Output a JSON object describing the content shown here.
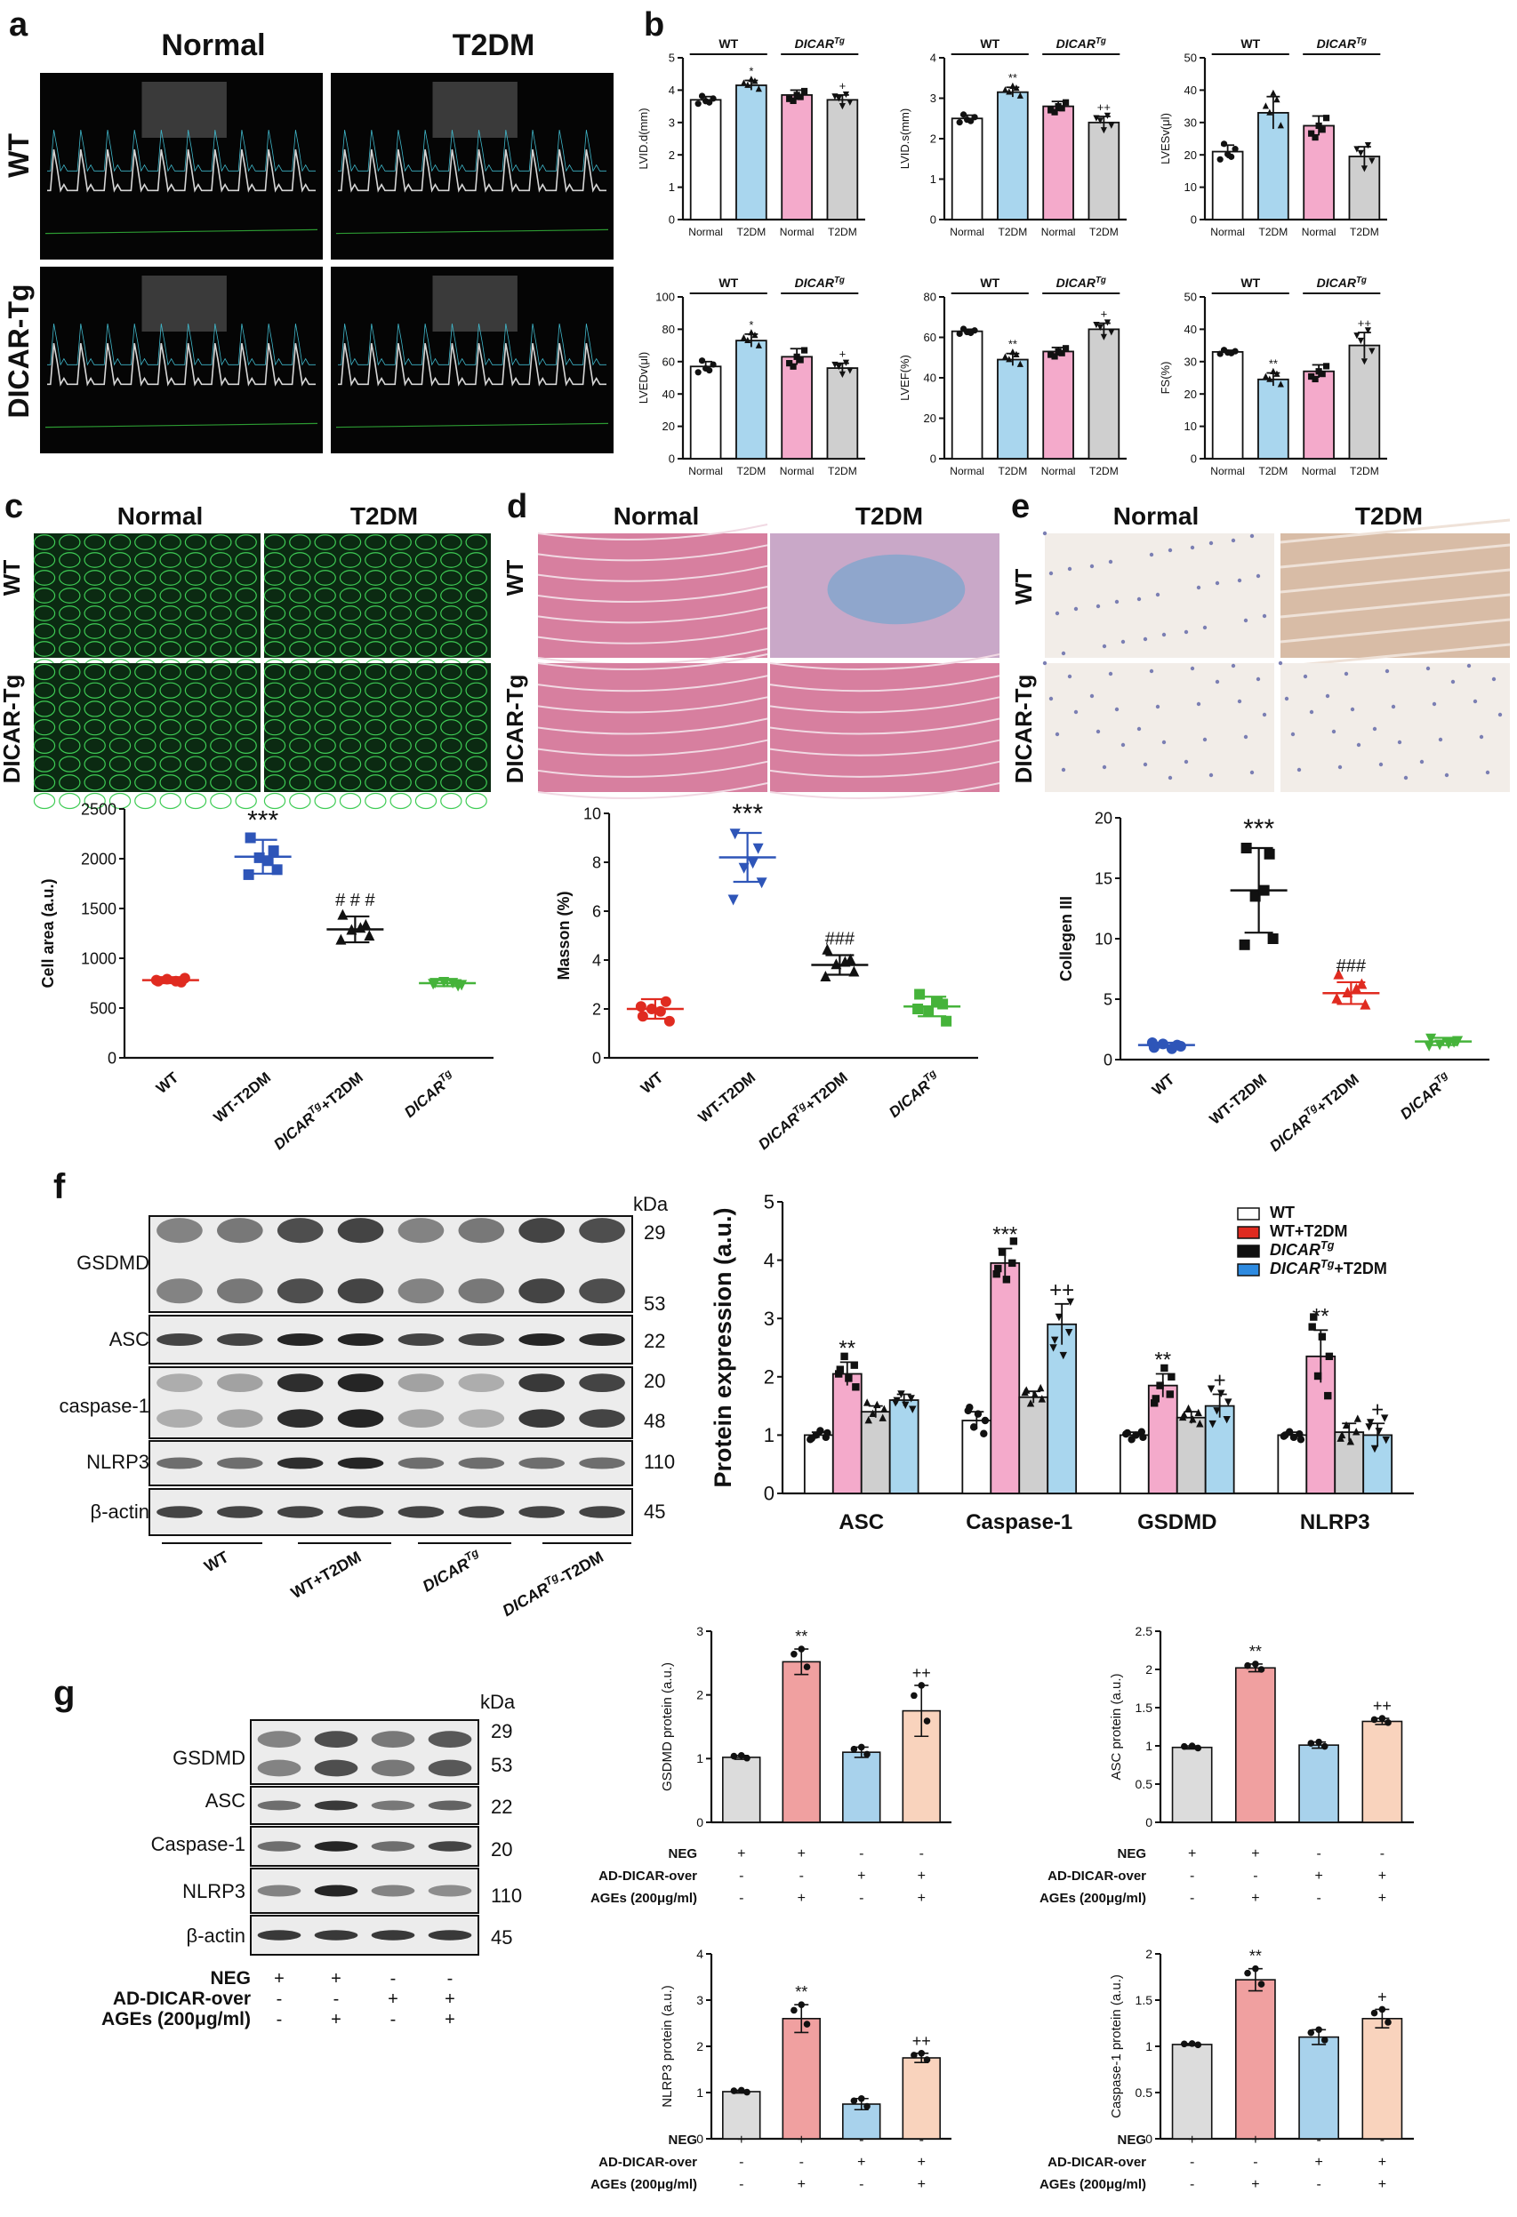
{
  "panels": {
    "a": {
      "letter": "a",
      "col_labels": [
        "Normal",
        "T2DM"
      ],
      "row_labels": [
        "WT",
        "DICAR-Tg"
      ]
    },
    "c": {
      "letter": "c",
      "col_labels": [
        "Normal",
        "T2DM"
      ],
      "row_labels": [
        "WT",
        "DICAR-Tg"
      ]
    },
    "d": {
      "letter": "d",
      "col_labels": [
        "Normal",
        "T2DM"
      ],
      "row_labels": [
        "WT",
        "DICAR-Tg"
      ]
    },
    "e": {
      "letter": "e",
      "col_labels": [
        "Normal",
        "T2DM"
      ],
      "row_labels": [
        "WT",
        "DICAR-Tg"
      ]
    },
    "b": {
      "letter": "b"
    },
    "f": {
      "letter": "f",
      "kda": "kDa",
      "blot_labels": [
        "GSDMD",
        "ASC",
        "caspase-1",
        "NLRP3",
        "β-actin"
      ],
      "mw": [
        "29",
        "53",
        "22",
        "20",
        "48",
        "110",
        "45"
      ],
      "groups": [
        "WT",
        "WT+T2DM",
        "DICARTg",
        "DICARTg-T2DM"
      ]
    },
    "g": {
      "letter": "g",
      "kda": "kDa",
      "blot_labels": [
        "GSDMD",
        "ASC",
        "Caspase-1",
        "NLRP3",
        "β-actin"
      ],
      "mw": [
        "29",
        "53",
        "22",
        "20",
        "110",
        "45"
      ],
      "cond_rows": [
        {
          "label": "NEG",
          "signs": [
            "+",
            "+",
            "-",
            "-"
          ]
        },
        {
          "label": "AD-DICAR-over",
          "signs": [
            "-",
            "-",
            "+",
            "+"
          ]
        },
        {
          "label": "AGEs (200μg/ml)",
          "signs": [
            "-",
            "+",
            "-",
            "+"
          ]
        }
      ]
    }
  },
  "colors": {
    "white": "#ffffff",
    "blue": "#a9d6ee",
    "pink": "#f4aacb",
    "gray": "#cfcfcf",
    "red": "#e02b20",
    "royal": "#2e55b8",
    "black": "#111111",
    "green": "#45b33a",
    "g_gray": "#dcdcdc",
    "g_red": "#f0a0a0",
    "g_blue": "#a8d2ec",
    "g_peach": "#f9d3bd"
  },
  "chart_data": [
    {
      "id": "lvidd",
      "type": "bar",
      "ylabel": "LVID.d(mm)",
      "ylim": [
        0,
        5
      ],
      "yticks": [
        0,
        1,
        2,
        3,
        4,
        5
      ],
      "categories": [
        "Normal",
        "T2DM",
        "Normal",
        "T2DM"
      ],
      "group_labels": [
        "WT",
        "DICARTg"
      ],
      "values": [
        3.7,
        4.15,
        3.85,
        3.7
      ],
      "errors": [
        0.1,
        0.15,
        0.15,
        0.15
      ],
      "sig": [
        "",
        "*",
        "",
        "+"
      ]
    },
    {
      "id": "lvids",
      "type": "bar",
      "ylabel": "LVID.s(mm)",
      "ylim": [
        0,
        4
      ],
      "yticks": [
        0,
        1,
        2,
        3,
        4
      ],
      "categories": [
        "Normal",
        "T2DM",
        "Normal",
        "T2DM"
      ],
      "group_labels": [
        "WT",
        "DICARTg"
      ],
      "values": [
        2.5,
        3.15,
        2.8,
        2.4
      ],
      "errors": [
        0.08,
        0.12,
        0.12,
        0.15
      ],
      "sig": [
        "",
        "**",
        "",
        "++"
      ]
    },
    {
      "id": "lvesv",
      "type": "bar",
      "ylabel": "LVESv(μl)",
      "ylim": [
        0,
        50
      ],
      "yticks": [
        0,
        10,
        20,
        30,
        40,
        50
      ],
      "categories": [
        "Normal",
        "T2DM",
        "Normal",
        "T2DM"
      ],
      "group_labels": [
        "WT",
        "DICARTg"
      ],
      "values": [
        21,
        33,
        29,
        19.5
      ],
      "errors": [
        2,
        5,
        3,
        3
      ],
      "sig": [
        "",
        "",
        "",
        ""
      ]
    },
    {
      "id": "lvedv",
      "type": "bar",
      "ylabel": "LVEDv(μl)",
      "ylim": [
        0,
        100
      ],
      "yticks": [
        0,
        20,
        40,
        60,
        80,
        100
      ],
      "categories": [
        "Normal",
        "T2DM",
        "Normal",
        "T2DM"
      ],
      "group_labels": [
        "WT",
        "DICARTg"
      ],
      "values": [
        57,
        73,
        63,
        56
      ],
      "errors": [
        3,
        4,
        5,
        3
      ],
      "sig": [
        "",
        "*",
        "",
        "+"
      ]
    },
    {
      "id": "lvef",
      "type": "bar",
      "ylabel": "LVEF(%)",
      "ylim": [
        0,
        80
      ],
      "yticks": [
        0,
        20,
        40,
        60,
        80
      ],
      "categories": [
        "Normal",
        "T2DM",
        "Normal",
        "T2DM"
      ],
      "group_labels": [
        "WT",
        "DICARTg"
      ],
      "values": [
        63,
        49,
        53,
        64
      ],
      "errors": [
        1,
        3,
        2,
        3
      ],
      "sig": [
        "",
        "**",
        "",
        "+"
      ]
    },
    {
      "id": "fs",
      "type": "bar",
      "ylabel": "FS(%)",
      "ylim": [
        0,
        50
      ],
      "yticks": [
        0,
        10,
        20,
        30,
        40,
        50
      ],
      "categories": [
        "Normal",
        "T2DM",
        "Normal",
        "T2DM"
      ],
      "group_labels": [
        "WT",
        "DICARTg"
      ],
      "values": [
        33,
        24.5,
        27,
        35
      ],
      "errors": [
        0.5,
        2,
        2,
        4
      ],
      "sig": [
        "",
        "**",
        "",
        "++"
      ]
    },
    {
      "id": "cellarea",
      "type": "scatter",
      "ylabel": "Cell area (a.u.)",
      "ylim": [
        0,
        2500
      ],
      "yticks": [
        0,
        500,
        1000,
        1500,
        2000,
        2500
      ],
      "categories": [
        "WT",
        "WT-T2DM",
        "DICARTg+T2DM",
        "DICARTg"
      ],
      "values": [
        780,
        2020,
        1290,
        750
      ],
      "errors": [
        30,
        170,
        130,
        30
      ],
      "points": [
        [
          770,
          760,
          790,
          800,
          780,
          770
        ],
        [
          2210,
          2080,
          2010,
          1890,
          1840,
          1980
        ],
        [
          1430,
          1330,
          1280,
          1220,
          1180,
          1300
        ],
        [
          760,
          730,
          770,
          740,
          750,
          760
        ]
      ],
      "sig": [
        "",
        "***",
        "# # #",
        ""
      ]
    },
    {
      "id": "masson",
      "type": "scatter",
      "ylabel": "Masson (%)",
      "ylim": [
        0,
        10
      ],
      "yticks": [
        0,
        2,
        4,
        6,
        8,
        10
      ],
      "categories": [
        "WT",
        "WT-T2DM",
        "DICARTg+T2DM",
        "DICARTg"
      ],
      "values": [
        2.0,
        8.2,
        3.8,
        2.1
      ],
      "errors": [
        0.4,
        1.0,
        0.4,
        0.4
      ],
      "points": [
        [
          1.7,
          2.3,
          2.0,
          1.5,
          2.1,
          1.9
        ],
        [
          9.2,
          8.6,
          7.8,
          7.2,
          6.5,
          8.0
        ],
        [
          4.4,
          4.0,
          3.8,
          3.5,
          3.3,
          3.9
        ],
        [
          2.6,
          2.2,
          1.9,
          1.5,
          2.0,
          2.3
        ]
      ],
      "sig": [
        "",
        "***",
        "###",
        ""
      ]
    },
    {
      "id": "collagen",
      "type": "scatter",
      "ylabel": "Collegen III",
      "ylim": [
        0,
        20
      ],
      "yticks": [
        0,
        5,
        10,
        15,
        20
      ],
      "categories": [
        "WT",
        "WT-T2DM",
        "DICARTg+T2DM",
        "DICARTg"
      ],
      "values": [
        1.2,
        14,
        5.5,
        1.5
      ],
      "errors": [
        0.2,
        3.5,
        0.9,
        0.3
      ],
      "points": [
        [
          1.0,
          1.2,
          1.3,
          1.1,
          1.4,
          0.9
        ],
        [
          17.5,
          17,
          13.5,
          10,
          9.5,
          14
        ],
        [
          7,
          6.2,
          5.5,
          4.5,
          5,
          5.8
        ],
        [
          1.8,
          1.5,
          1.3,
          1.6,
          1.2,
          1.4
        ]
      ],
      "sig": [
        "",
        "***",
        "###",
        ""
      ]
    },
    {
      "id": "protein",
      "type": "bar",
      "ylabel": "Protein expression (a.u.)",
      "ylim": [
        0,
        5
      ],
      "yticks": [
        0,
        1,
        2,
        3,
        4,
        5
      ],
      "categories": [
        "ASC",
        "Caspase-1",
        "GSDMD",
        "NLRP3"
      ],
      "series": [
        {
          "name": "WT",
          "values": [
            1.0,
            1.25,
            1.0,
            1.0
          ],
          "errors": [
            0.05,
            0.15,
            0.05,
            0.05
          ]
        },
        {
          "name": "WT+T2DM",
          "values": [
            2.05,
            3.95,
            1.85,
            2.35
          ],
          "errors": [
            0.2,
            0.25,
            0.2,
            0.45
          ]
        },
        {
          "name": "DICARTg",
          "values": [
            1.4,
            1.65,
            1.3,
            1.05
          ],
          "errors": [
            0.1,
            0.1,
            0.1,
            0.15
          ]
        },
        {
          "name": "DICARTg+T2DM",
          "values": [
            1.6,
            2.9,
            1.5,
            1.0
          ],
          "errors": [
            0.1,
            0.35,
            0.2,
            0.2
          ]
        }
      ],
      "sig": [
        [
          "",
          "**",
          "",
          ""
        ],
        [
          "",
          "***",
          "",
          "++"
        ],
        [
          "",
          "**",
          "",
          "+"
        ],
        [
          "",
          "**",
          "",
          "+"
        ]
      ],
      "legend": [
        "WT",
        "WT+T2DM",
        "DICARTg",
        "DICARTg+T2DM"
      ]
    },
    {
      "id": "g_gsdmd",
      "type": "bar",
      "ylabel": "GSDMD protein (a.u.)",
      "ylim": [
        0,
        3
      ],
      "yticks": [
        0,
        1,
        2,
        3
      ],
      "values": [
        1.02,
        2.52,
        1.1,
        1.75
      ],
      "errors": [
        0.03,
        0.2,
        0.08,
        0.4
      ],
      "sig": [
        "",
        "**",
        "",
        "++"
      ]
    },
    {
      "id": "g_asc",
      "type": "bar",
      "ylabel": "ASC protein (a.u.)",
      "ylim": [
        0,
        2.5
      ],
      "yticks": [
        0,
        0.5,
        1.0,
        1.5,
        2.0,
        2.5
      ],
      "values": [
        0.98,
        2.02,
        1.01,
        1.32
      ],
      "errors": [
        0.02,
        0.05,
        0.04,
        0.04
      ],
      "sig": [
        "",
        "**",
        "",
        "++"
      ]
    },
    {
      "id": "g_nlrp3",
      "type": "bar",
      "ylabel": "NLRP3 protein (a.u.)",
      "ylim": [
        0,
        4
      ],
      "yticks": [
        0,
        1,
        2,
        3,
        4
      ],
      "values": [
        1.02,
        2.6,
        0.75,
        1.75
      ],
      "errors": [
        0.03,
        0.3,
        0.12,
        0.1
      ],
      "sig": [
        "",
        "**",
        "",
        "++"
      ]
    },
    {
      "id": "g_casp1",
      "type": "bar",
      "ylabel": "Caspase-1 protein (a.u.)",
      "ylim": [
        0,
        2.0
      ],
      "yticks": [
        0,
        0.5,
        1.0,
        1.5,
        2.0
      ],
      "values": [
        1.02,
        1.72,
        1.1,
        1.3
      ],
      "errors": [
        0.01,
        0.12,
        0.08,
        0.1
      ],
      "sig": [
        "",
        "**",
        "",
        "+"
      ]
    }
  ]
}
